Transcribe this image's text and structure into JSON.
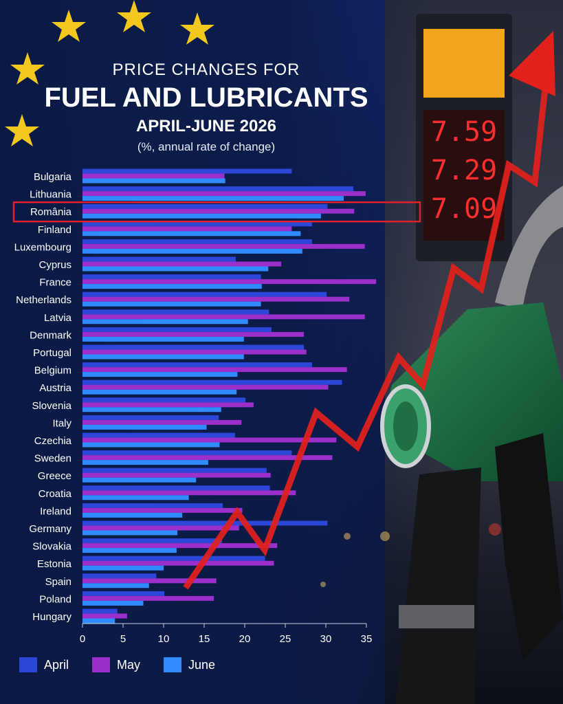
{
  "title": {
    "line1": "PRICE CHANGES FOR",
    "line2": "FUEL AND LUBRICANTS",
    "line3": "APRIL-JUNE 2026",
    "line4": "(%, annual rate of change)"
  },
  "pump_sign": [
    "7.59",
    "7.29",
    "7.09"
  ],
  "colors": {
    "april": "#2c46d8",
    "may": "#9a2fc9",
    "june": "#2f8bff",
    "highlight": "#e0202a",
    "arrow": "#e3211c"
  },
  "highlighted_category": "România",
  "chart_data": {
    "type": "bar",
    "orientation": "horizontal",
    "title": "FUEL AND LUBRICANTS",
    "xlim": [
      0,
      35
    ],
    "xticks": [
      0,
      5,
      10,
      15,
      20,
      25,
      30,
      35
    ],
    "categories": [
      "Bulgaria",
      "Lithuania",
      "România",
      "Finland",
      "Luxembourg",
      "Cyprus",
      "France",
      "Netherlands",
      "Latvia",
      "Denmark",
      "Portugal",
      "Belgium",
      "Austria",
      "Slovenia",
      "Italy",
      "Czechia",
      "Sweden",
      "Greece",
      "Croatia",
      "Ireland",
      "Germany",
      "Slovakia",
      "Estonia",
      "Spain",
      "Poland",
      "Hungary"
    ],
    "series": [
      {
        "name": "April",
        "values": [
          25.8,
          33.4,
          30.2,
          28.3,
          28.3,
          18.9,
          22.0,
          30.1,
          23.0,
          23.3,
          27.3,
          28.3,
          32.0,
          20.1,
          16.8,
          18.8,
          25.8,
          22.7,
          23.1,
          17.3,
          30.2,
          17.2,
          22.5,
          9.1,
          10.1,
          4.3
        ]
      },
      {
        "name": "May",
        "values": [
          17.5,
          34.9,
          33.5,
          25.8,
          34.8,
          24.5,
          36.2,
          32.9,
          34.8,
          27.3,
          27.6,
          32.6,
          30.3,
          21.1,
          19.6,
          31.3,
          30.8,
          23.2,
          26.3,
          19.7,
          19.3,
          24.0,
          23.6,
          16.5,
          16.2,
          5.5
        ]
      },
      {
        "name": "June",
        "values": [
          17.6,
          32.2,
          29.4,
          26.9,
          27.1,
          22.9,
          22.1,
          22.0,
          20.4,
          19.9,
          19.9,
          19.1,
          19.0,
          17.1,
          15.3,
          16.9,
          15.5,
          14.0,
          13.1,
          12.3,
          11.7,
          11.6,
          10.0,
          8.2,
          7.5,
          4.0
        ]
      }
    ],
    "legend": {
      "position": "bottom",
      "entries": [
        "April",
        "May",
        "June"
      ]
    }
  }
}
